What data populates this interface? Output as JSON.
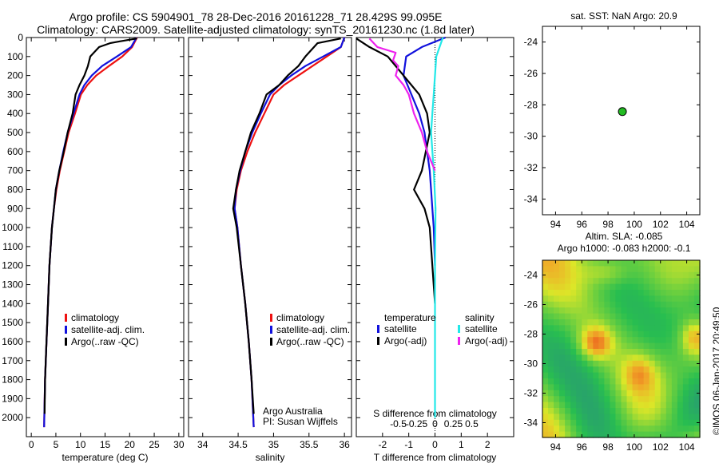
{
  "header": {
    "line1": "Argo profile: CS 5904901_78 28-Dec-2016 20161228_71 28.429S 99.095E",
    "line2": "Climatology: CARS2009. Satellite-adjusted climatology: synTS_20161230.nc (1.8d later)"
  },
  "colors": {
    "climatology": "#ee1111",
    "satellite": "#1111dd",
    "argo": "#000000",
    "sat_salinity": "#22e8e8",
    "argo_salinity": "#ee22ee",
    "marker": "#22bb22"
  },
  "chart_data": [
    {
      "type": "line",
      "xlabel": "temperature (deg C)",
      "ylabel": "",
      "xlim": [
        -1,
        31
      ],
      "ylim": [
        2100,
        0
      ],
      "xticks": [
        0,
        5,
        10,
        15,
        20,
        25,
        30
      ],
      "yticks": [
        0,
        100,
        200,
        300,
        400,
        500,
        600,
        700,
        800,
        900,
        1000,
        1100,
        1200,
        1300,
        1400,
        1500,
        1600,
        1700,
        1800,
        1900,
        2000
      ],
      "legend": [
        "climatology",
        "satellite-adj. clim.",
        "Argo(..raw -QC)"
      ],
      "series": [
        {
          "name": "climatology",
          "color": "#ee1111",
          "x": [
            21.5,
            20.5,
            18.5,
            15.8,
            13.2,
            11.4,
            10.1,
            8.9,
            7.6,
            6.7,
            5.8,
            5.1,
            4.6,
            4.2,
            3.7,
            3.4,
            3.1,
            2.8,
            2.6
          ],
          "y": [
            0,
            50,
            100,
            150,
            200,
            250,
            300,
            400,
            500,
            600,
            700,
            800,
            900,
            1000,
            1200,
            1400,
            1600,
            1800,
            2050
          ]
        },
        {
          "name": "satellite-adj. clim.",
          "color": "#1111dd",
          "x": [
            21.4,
            20.3,
            17.4,
            14.4,
            12.3,
            10.8,
            9.8,
            8.6,
            7.4,
            6.5,
            5.7,
            5.0,
            4.6,
            4.2,
            3.7,
            3.4,
            3.1,
            2.8,
            2.6
          ],
          "y": [
            0,
            50,
            100,
            150,
            200,
            250,
            300,
            400,
            500,
            600,
            700,
            800,
            900,
            1000,
            1200,
            1400,
            1600,
            1800,
            2050
          ]
        },
        {
          "name": "Argo(..raw -QC)",
          "color": "#000000",
          "x": [
            21.5,
            18.0,
            16.0,
            13.8,
            12.0,
            11.5,
            10.8,
            9.8,
            9.0,
            8.4,
            7.4,
            6.6,
            5.7,
            5.0,
            4.6,
            4.2,
            3.7,
            3.4,
            3.1,
            2.8,
            2.7
          ],
          "y": [
            5,
            20,
            30,
            50,
            100,
            150,
            200,
            250,
            300,
            400,
            500,
            600,
            700,
            800,
            900,
            1000,
            1200,
            1400,
            1600,
            1800,
            1980
          ]
        }
      ]
    },
    {
      "type": "line",
      "xlabel": "salinity",
      "ylabel": "",
      "xlim": [
        33.8,
        36.1
      ],
      "ylim": [
        2100,
        0
      ],
      "xticks": [
        34,
        34.5,
        35,
        35.5,
        36
      ],
      "legend": [
        "climatology",
        "satellite-adj. clim.",
        "Argo(..raw -QC)"
      ],
      "series": [
        {
          "name": "climatology",
          "color": "#ee1111",
          "x": [
            36.0,
            35.95,
            35.75,
            35.55,
            35.35,
            35.15,
            35.0,
            34.87,
            34.74,
            34.63,
            34.54,
            34.48,
            34.45,
            34.49,
            34.54,
            34.6,
            34.65,
            34.69,
            34.72
          ],
          "y": [
            0,
            50,
            100,
            150,
            200,
            250,
            300,
            400,
            500,
            600,
            700,
            800,
            900,
            1000,
            1200,
            1400,
            1600,
            1800,
            2050
          ]
        },
        {
          "name": "satellite-adj. clim.",
          "color": "#1111dd",
          "x": [
            36.0,
            35.95,
            35.7,
            35.45,
            35.25,
            35.08,
            34.95,
            34.82,
            34.7,
            34.6,
            34.53,
            34.47,
            34.45,
            34.49,
            34.54,
            34.6,
            34.65,
            34.69,
            34.72
          ],
          "y": [
            0,
            50,
            100,
            150,
            200,
            250,
            300,
            400,
            500,
            600,
            700,
            800,
            900,
            1000,
            1200,
            1400,
            1600,
            1800,
            2050
          ]
        },
        {
          "name": "Argo(..raw -QC)",
          "color": "#000000",
          "x": [
            35.95,
            35.62,
            35.45,
            35.35,
            35.2,
            35.08,
            34.9,
            34.8,
            34.68,
            34.6,
            34.52,
            34.47,
            34.43,
            34.48,
            34.54,
            34.6,
            34.65,
            34.69,
            34.72
          ],
          "y": [
            5,
            30,
            100,
            150,
            200,
            250,
            300,
            400,
            500,
            600,
            700,
            800,
            900,
            1000,
            1200,
            1400,
            1600,
            1800,
            1980
          ]
        }
      ]
    },
    {
      "type": "line",
      "xlabel": "T difference from climatology",
      "ylabel": "",
      "xlim": [
        -3.0,
        3.0
      ],
      "ylim": [
        2100,
        0
      ],
      "xticks": [
        -2,
        -1,
        0,
        1,
        2
      ],
      "top_axis_label": "S difference from climatology",
      "top_ticks": [
        "-0.5",
        "-0.25",
        "0",
        "0.25",
        "0.5"
      ],
      "legend_headers": [
        "temperature",
        "salinity"
      ],
      "legend": [
        "satellite",
        "Argo(-adj)",
        "satellite",
        "Argo(-adj)"
      ],
      "series": [
        {
          "name": "satellite",
          "color": "#1111dd",
          "x": [
            0.4,
            -0.5,
            -1.1,
            -1.2,
            -0.9,
            -0.6,
            -0.4,
            -0.3,
            -0.2,
            -0.15,
            -0.1,
            -0.05,
            0
          ],
          "y": [
            0,
            50,
            100,
            200,
            300,
            400,
            500,
            600,
            700,
            800,
            900,
            1000,
            1200
          ]
        },
        {
          "name": "Argo(-adj)",
          "color": "#000000",
          "x": [
            -3.0,
            -2.5,
            -1.8,
            -1.2,
            -0.6,
            -0.3,
            -0.2,
            -0.35,
            -0.5,
            -0.8,
            -0.4,
            -0.2,
            -0.1,
            0
          ],
          "y": [
            5,
            50,
            100,
            200,
            300,
            400,
            500,
            600,
            700,
            800,
            900,
            1000,
            1200,
            1400
          ]
        },
        {
          "name": "satellite",
          "color": "#22e8e8",
          "x": [
            0.3,
            0.05,
            0,
            -0.05,
            -0.1,
            -0.15,
            -0.05,
            0.02,
            0,
            0
          ],
          "y": [
            0,
            100,
            200,
            300,
            400,
            500,
            700,
            900,
            1200,
            2000
          ]
        },
        {
          "name": "Argo(-adj)",
          "color": "#ee22ee",
          "x": [
            -2.5,
            -2.2,
            -1.5,
            -1.6,
            -1.4,
            -1.5,
            -1.2,
            -1.0,
            -0.8,
            -0.5,
            -0.3,
            0
          ],
          "y": [
            5,
            50,
            80,
            120,
            150,
            200,
            250,
            300,
            400,
            500,
            600,
            700
          ]
        }
      ]
    },
    {
      "type": "scatter",
      "title": "sat. SST: NaN Argo: 20.9",
      "xlim": [
        93,
        105
      ],
      "ylim": [
        -35,
        -23
      ],
      "xticks": [
        94,
        96,
        98,
        100,
        102,
        104
      ],
      "yticks": [
        -24,
        -26,
        -28,
        -30,
        -32,
        -34
      ],
      "points": [
        {
          "x": 99.095,
          "y": -28.429
        }
      ]
    },
    {
      "type": "heatmap",
      "title": "Altim. SLA: -0.085",
      "subtitle": "Argo h1000: -0.083 h2000: -0.1",
      "xlim": [
        93,
        105
      ],
      "ylim": [
        -35,
        -23
      ],
      "xticks": [
        94,
        96,
        98,
        100,
        102,
        104
      ],
      "yticks": [
        -24,
        -26,
        -28,
        -30,
        -32,
        -34
      ]
    }
  ],
  "annotations": {
    "credit_line1": "Argo Australia",
    "credit_line2": "PI: Susan Wijffels",
    "imos": "©IMOS 06-Jan-2017 20:49:50"
  }
}
